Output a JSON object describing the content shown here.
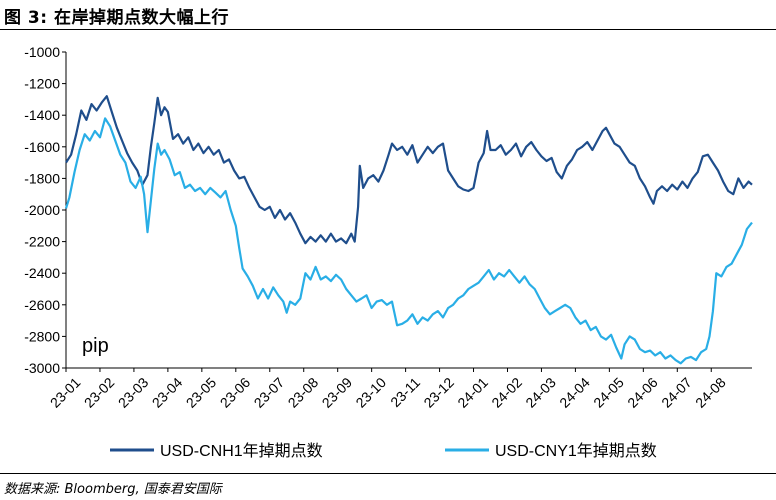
{
  "figure": {
    "title": "图 3:  在岸掉期点数大幅上行",
    "source": "数据来源: Bloomberg, 国泰君安国际"
  },
  "colors": {
    "cnh": "#1f4e8c",
    "cny": "#29aee6"
  },
  "chart_data": {
    "type": "line",
    "title": "",
    "xlabel": "",
    "ylabel": "",
    "unit_label": "pip",
    "ylim": [
      -3000,
      -1000
    ],
    "yticks": [
      -1000,
      -1200,
      -1400,
      -1600,
      -1800,
      -2000,
      -2200,
      -2400,
      -2600,
      -2800,
      -3000
    ],
    "x_categories": [
      "23-01",
      "23-02",
      "23-03",
      "23-04",
      "23-05",
      "23-06",
      "23-07",
      "23-08",
      "23-09",
      "23-10",
      "23-11",
      "23-12",
      "24-01",
      "24-02",
      "24-03",
      "24-04",
      "24-05",
      "24-06",
      "24-07",
      "24-08"
    ],
    "xlim_months": [
      0,
      20.2
    ],
    "grid": false,
    "legend_position": "bottom",
    "series": [
      {
        "name": "USD-CNH1年掉期点数",
        "color": "#1f4e8c",
        "points": [
          [
            0.0,
            -1700
          ],
          [
            0.15,
            -1650
          ],
          [
            0.3,
            -1520
          ],
          [
            0.45,
            -1370
          ],
          [
            0.6,
            -1430
          ],
          [
            0.75,
            -1330
          ],
          [
            0.9,
            -1370
          ],
          [
            1.05,
            -1320
          ],
          [
            1.2,
            -1280
          ],
          [
            1.35,
            -1380
          ],
          [
            1.5,
            -1480
          ],
          [
            1.65,
            -1560
          ],
          [
            1.8,
            -1640
          ],
          [
            1.95,
            -1700
          ],
          [
            2.1,
            -1750
          ],
          [
            2.25,
            -1840
          ],
          [
            2.4,
            -1780
          ],
          [
            2.5,
            -1600
          ],
          [
            2.6,
            -1450
          ],
          [
            2.7,
            -1290
          ],
          [
            2.8,
            -1400
          ],
          [
            2.9,
            -1350
          ],
          [
            3.0,
            -1380
          ],
          [
            3.15,
            -1550
          ],
          [
            3.3,
            -1520
          ],
          [
            3.45,
            -1580
          ],
          [
            3.6,
            -1540
          ],
          [
            3.75,
            -1620
          ],
          [
            3.9,
            -1580
          ],
          [
            4.05,
            -1640
          ],
          [
            4.2,
            -1600
          ],
          [
            4.35,
            -1650
          ],
          [
            4.5,
            -1620
          ],
          [
            4.65,
            -1700
          ],
          [
            4.8,
            -1680
          ],
          [
            4.95,
            -1750
          ],
          [
            5.1,
            -1800
          ],
          [
            5.25,
            -1790
          ],
          [
            5.4,
            -1860
          ],
          [
            5.55,
            -1920
          ],
          [
            5.7,
            -1980
          ],
          [
            5.85,
            -2000
          ],
          [
            6.0,
            -1980
          ],
          [
            6.15,
            -2050
          ],
          [
            6.3,
            -2000
          ],
          [
            6.45,
            -2060
          ],
          [
            6.6,
            -2020
          ],
          [
            6.75,
            -2080
          ],
          [
            6.9,
            -2150
          ],
          [
            7.05,
            -2210
          ],
          [
            7.2,
            -2170
          ],
          [
            7.35,
            -2200
          ],
          [
            7.5,
            -2160
          ],
          [
            7.65,
            -2200
          ],
          [
            7.8,
            -2150
          ],
          [
            7.95,
            -2200
          ],
          [
            8.1,
            -2180
          ],
          [
            8.25,
            -2210
          ],
          [
            8.4,
            -2150
          ],
          [
            8.5,
            -2200
          ],
          [
            8.6,
            -1980
          ],
          [
            8.65,
            -1720
          ],
          [
            8.75,
            -1860
          ],
          [
            8.9,
            -1800
          ],
          [
            9.05,
            -1780
          ],
          [
            9.2,
            -1820
          ],
          [
            9.35,
            -1750
          ],
          [
            9.5,
            -1650
          ],
          [
            9.6,
            -1580
          ],
          [
            9.75,
            -1620
          ],
          [
            9.9,
            -1600
          ],
          [
            10.05,
            -1650
          ],
          [
            10.2,
            -1590
          ],
          [
            10.35,
            -1700
          ],
          [
            10.5,
            -1650
          ],
          [
            10.65,
            -1600
          ],
          [
            10.8,
            -1640
          ],
          [
            10.95,
            -1600
          ],
          [
            11.1,
            -1580
          ],
          [
            11.25,
            -1750
          ],
          [
            11.4,
            -1800
          ],
          [
            11.55,
            -1850
          ],
          [
            11.7,
            -1870
          ],
          [
            11.85,
            -1880
          ],
          [
            12.0,
            -1860
          ],
          [
            12.15,
            -1700
          ],
          [
            12.3,
            -1640
          ],
          [
            12.4,
            -1500
          ],
          [
            12.5,
            -1620
          ],
          [
            12.65,
            -1620
          ],
          [
            12.8,
            -1590
          ],
          [
            12.95,
            -1650
          ],
          [
            13.1,
            -1620
          ],
          [
            13.25,
            -1580
          ],
          [
            13.4,
            -1660
          ],
          [
            13.55,
            -1600
          ],
          [
            13.7,
            -1570
          ],
          [
            13.85,
            -1620
          ],
          [
            14.0,
            -1660
          ],
          [
            14.15,
            -1690
          ],
          [
            14.3,
            -1670
          ],
          [
            14.45,
            -1760
          ],
          [
            14.6,
            -1800
          ],
          [
            14.75,
            -1720
          ],
          [
            14.9,
            -1680
          ],
          [
            15.05,
            -1620
          ],
          [
            15.2,
            -1600
          ],
          [
            15.35,
            -1570
          ],
          [
            15.5,
            -1620
          ],
          [
            15.65,
            -1560
          ],
          [
            15.8,
            -1500
          ],
          [
            15.9,
            -1480
          ],
          [
            16.0,
            -1520
          ],
          [
            16.15,
            -1580
          ],
          [
            16.3,
            -1600
          ],
          [
            16.45,
            -1650
          ],
          [
            16.6,
            -1700
          ],
          [
            16.75,
            -1720
          ],
          [
            16.9,
            -1800
          ],
          [
            17.05,
            -1850
          ],
          [
            17.2,
            -1920
          ],
          [
            17.3,
            -1960
          ],
          [
            17.4,
            -1880
          ],
          [
            17.55,
            -1850
          ],
          [
            17.7,
            -1880
          ],
          [
            17.85,
            -1840
          ],
          [
            18.0,
            -1870
          ],
          [
            18.15,
            -1820
          ],
          [
            18.3,
            -1860
          ],
          [
            18.45,
            -1800
          ],
          [
            18.6,
            -1760
          ],
          [
            18.75,
            -1660
          ],
          [
            18.9,
            -1650
          ],
          [
            19.05,
            -1700
          ],
          [
            19.2,
            -1750
          ],
          [
            19.35,
            -1820
          ],
          [
            19.5,
            -1880
          ],
          [
            19.65,
            -1900
          ],
          [
            19.8,
            -1800
          ],
          [
            19.95,
            -1860
          ],
          [
            20.1,
            -1820
          ],
          [
            20.2,
            -1840
          ]
        ]
      },
      {
        "name": "USD-CNY1年掉期点数",
        "color": "#29aee6",
        "points": [
          [
            0.0,
            -1990
          ],
          [
            0.1,
            -1920
          ],
          [
            0.25,
            -1760
          ],
          [
            0.4,
            -1620
          ],
          [
            0.55,
            -1520
          ],
          [
            0.7,
            -1560
          ],
          [
            0.85,
            -1500
          ],
          [
            1.0,
            -1540
          ],
          [
            1.15,
            -1420
          ],
          [
            1.3,
            -1470
          ],
          [
            1.45,
            -1560
          ],
          [
            1.6,
            -1650
          ],
          [
            1.75,
            -1700
          ],
          [
            1.9,
            -1820
          ],
          [
            2.05,
            -1860
          ],
          [
            2.2,
            -1790
          ],
          [
            2.3,
            -1900
          ],
          [
            2.4,
            -2140
          ],
          [
            2.5,
            -1940
          ],
          [
            2.6,
            -1740
          ],
          [
            2.7,
            -1580
          ],
          [
            2.8,
            -1650
          ],
          [
            2.9,
            -1620
          ],
          [
            3.05,
            -1680
          ],
          [
            3.2,
            -1780
          ],
          [
            3.35,
            -1760
          ],
          [
            3.5,
            -1860
          ],
          [
            3.65,
            -1840
          ],
          [
            3.8,
            -1880
          ],
          [
            3.95,
            -1860
          ],
          [
            4.1,
            -1900
          ],
          [
            4.25,
            -1860
          ],
          [
            4.4,
            -1890
          ],
          [
            4.55,
            -1920
          ],
          [
            4.7,
            -1880
          ],
          [
            4.85,
            -2000
          ],
          [
            5.0,
            -2100
          ],
          [
            5.1,
            -2240
          ],
          [
            5.2,
            -2370
          ],
          [
            5.35,
            -2420
          ],
          [
            5.5,
            -2480
          ],
          [
            5.65,
            -2560
          ],
          [
            5.8,
            -2500
          ],
          [
            5.95,
            -2560
          ],
          [
            6.1,
            -2490
          ],
          [
            6.25,
            -2540
          ],
          [
            6.4,
            -2580
          ],
          [
            6.5,
            -2650
          ],
          [
            6.6,
            -2580
          ],
          [
            6.75,
            -2600
          ],
          [
            6.9,
            -2560
          ],
          [
            7.05,
            -2400
          ],
          [
            7.2,
            -2440
          ],
          [
            7.35,
            -2360
          ],
          [
            7.5,
            -2440
          ],
          [
            7.65,
            -2420
          ],
          [
            7.8,
            -2450
          ],
          [
            7.95,
            -2410
          ],
          [
            8.1,
            -2440
          ],
          [
            8.25,
            -2500
          ],
          [
            8.4,
            -2540
          ],
          [
            8.55,
            -2580
          ],
          [
            8.7,
            -2560
          ],
          [
            8.85,
            -2540
          ],
          [
            9.0,
            -2620
          ],
          [
            9.15,
            -2580
          ],
          [
            9.3,
            -2570
          ],
          [
            9.45,
            -2600
          ],
          [
            9.6,
            -2580
          ],
          [
            9.75,
            -2730
          ],
          [
            9.9,
            -2720
          ],
          [
            10.05,
            -2700
          ],
          [
            10.2,
            -2660
          ],
          [
            10.35,
            -2720
          ],
          [
            10.5,
            -2680
          ],
          [
            10.65,
            -2700
          ],
          [
            10.8,
            -2660
          ],
          [
            10.95,
            -2640
          ],
          [
            11.1,
            -2680
          ],
          [
            11.25,
            -2620
          ],
          [
            11.4,
            -2600
          ],
          [
            11.55,
            -2560
          ],
          [
            11.7,
            -2540
          ],
          [
            11.85,
            -2500
          ],
          [
            12.0,
            -2480
          ],
          [
            12.15,
            -2460
          ],
          [
            12.3,
            -2420
          ],
          [
            12.45,
            -2380
          ],
          [
            12.6,
            -2440
          ],
          [
            12.75,
            -2400
          ],
          [
            12.9,
            -2420
          ],
          [
            13.05,
            -2380
          ],
          [
            13.2,
            -2420
          ],
          [
            13.35,
            -2460
          ],
          [
            13.5,
            -2420
          ],
          [
            13.65,
            -2470
          ],
          [
            13.8,
            -2500
          ],
          [
            13.95,
            -2560
          ],
          [
            14.1,
            -2620
          ],
          [
            14.25,
            -2660
          ],
          [
            14.4,
            -2640
          ],
          [
            14.55,
            -2620
          ],
          [
            14.7,
            -2600
          ],
          [
            14.85,
            -2620
          ],
          [
            15.0,
            -2680
          ],
          [
            15.15,
            -2720
          ],
          [
            15.3,
            -2700
          ],
          [
            15.45,
            -2760
          ],
          [
            15.6,
            -2740
          ],
          [
            15.75,
            -2800
          ],
          [
            15.9,
            -2820
          ],
          [
            16.05,
            -2790
          ],
          [
            16.2,
            -2870
          ],
          [
            16.35,
            -2940
          ],
          [
            16.45,
            -2850
          ],
          [
            16.6,
            -2800
          ],
          [
            16.75,
            -2820
          ],
          [
            16.9,
            -2880
          ],
          [
            17.05,
            -2900
          ],
          [
            17.2,
            -2890
          ],
          [
            17.35,
            -2920
          ],
          [
            17.5,
            -2900
          ],
          [
            17.65,
            -2940
          ],
          [
            17.8,
            -2920
          ],
          [
            17.95,
            -2950
          ],
          [
            18.1,
            -2970
          ],
          [
            18.25,
            -2940
          ],
          [
            18.4,
            -2930
          ],
          [
            18.55,
            -2950
          ],
          [
            18.7,
            -2900
          ],
          [
            18.85,
            -2880
          ],
          [
            18.95,
            -2800
          ],
          [
            19.05,
            -2640
          ],
          [
            19.15,
            -2400
          ],
          [
            19.3,
            -2420
          ],
          [
            19.45,
            -2360
          ],
          [
            19.6,
            -2340
          ],
          [
            19.75,
            -2280
          ],
          [
            19.9,
            -2220
          ],
          [
            20.05,
            -2120
          ],
          [
            20.2,
            -2080
          ]
        ]
      }
    ]
  }
}
